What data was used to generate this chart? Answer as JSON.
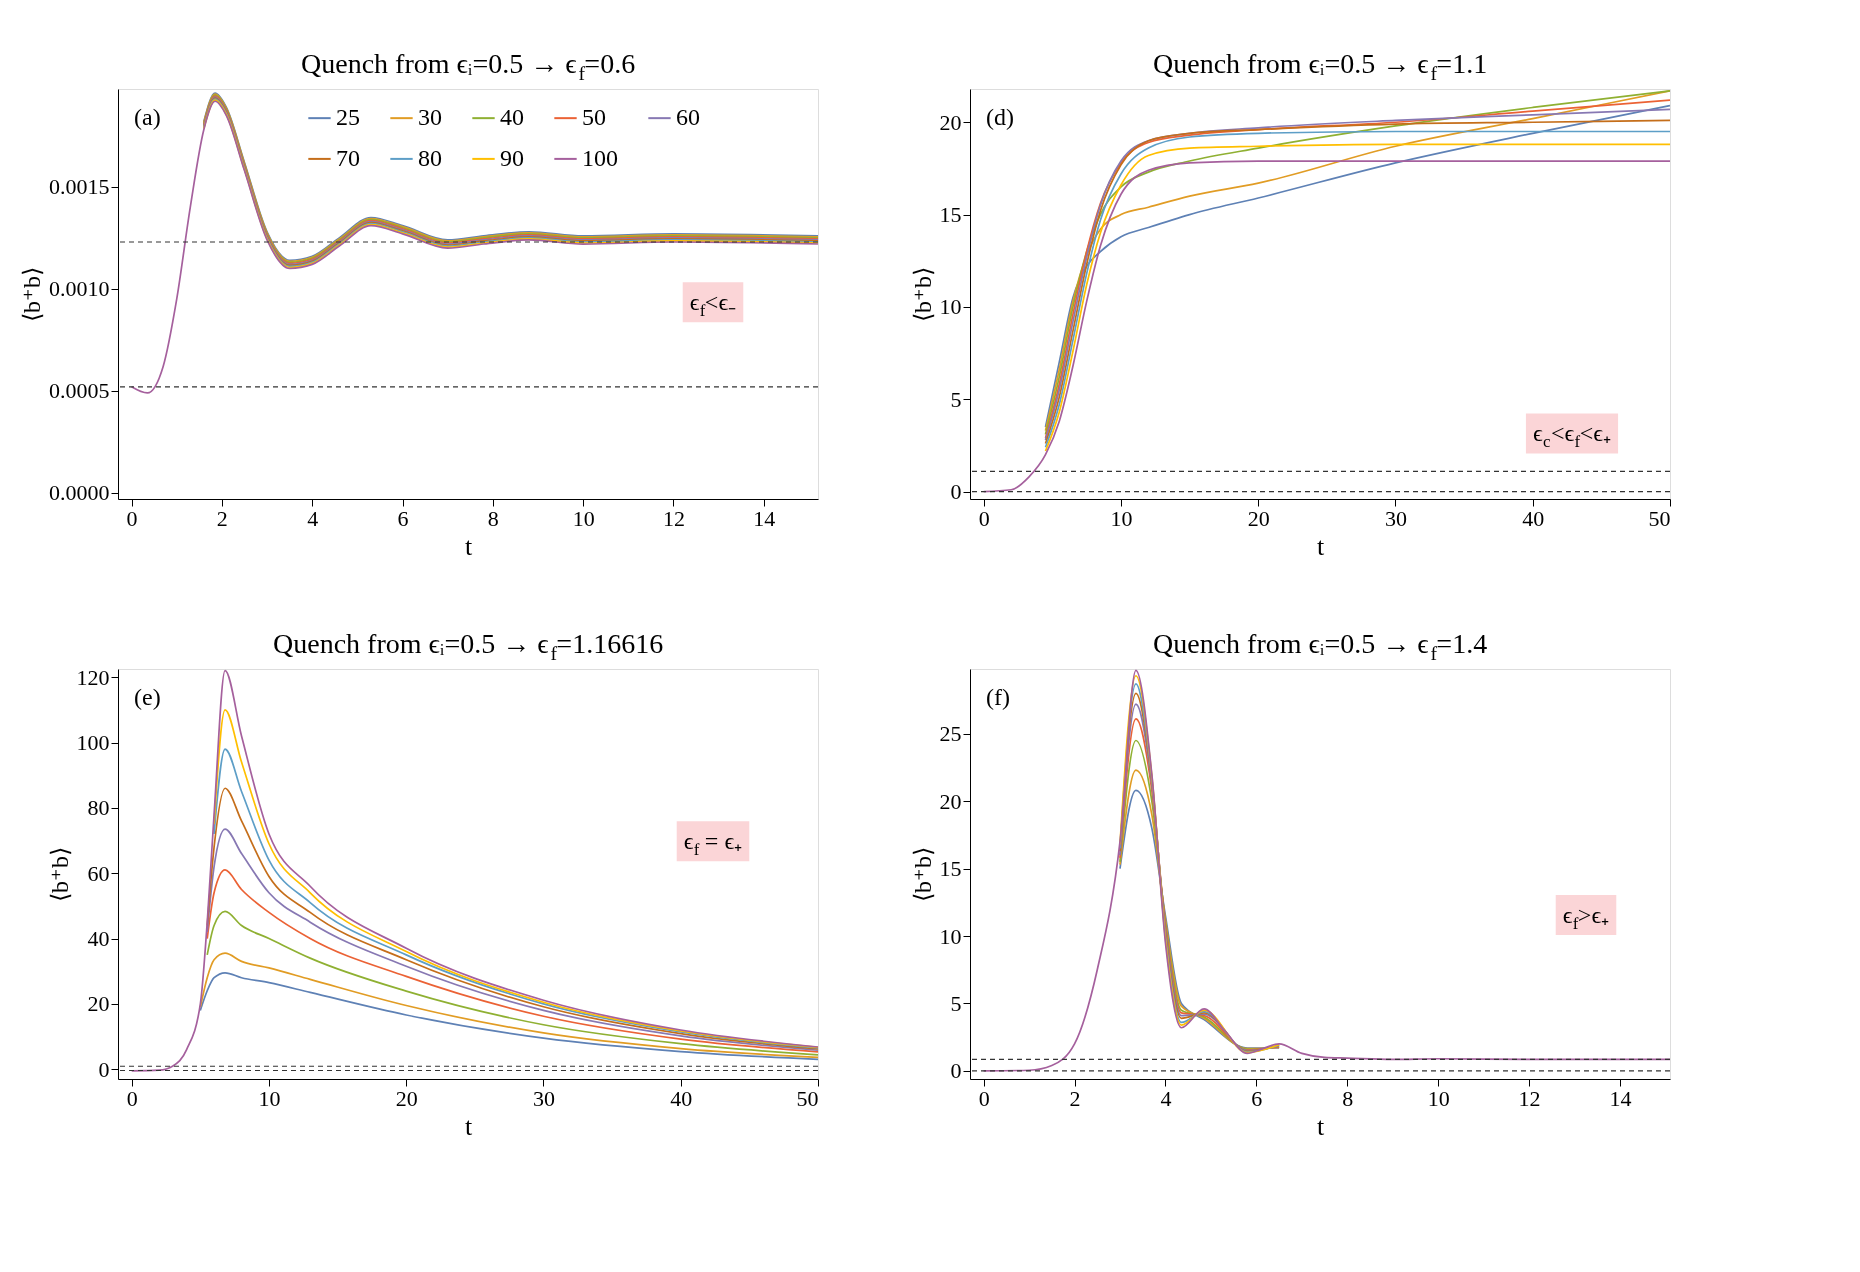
{
  "chart_data": [
    {
      "type": "line",
      "title": "Quench from ϵᵢ=0.5 → ϵ$_{f}$=0.6",
      "xlabel": "t",
      "ylabel": "⟨b⁺b⟩",
      "legend": "top right",
      "xlim": [
        -0.3,
        15.2
      ],
      "ylim": [
        -3e-05,
        0.00198
      ],
      "xticks": [
        0,
        2,
        4,
        6,
        8,
        10,
        12,
        14
      ],
      "yticks": [
        {
          "value": 0,
          "label": "0.0000"
        },
        {
          "value": 0.0005,
          "label": "0.0005"
        },
        {
          "value": 0.001,
          "label": "0.0010"
        },
        {
          "value": 0.0015,
          "label": "0.0015"
        }
      ],
      "x": [
        0,
        0.35,
        0.7,
        1.0,
        1.3,
        1.6,
        1.85,
        2.1,
        2.5,
        3.0,
        3.5,
        4.0,
        4.6,
        5.3,
        6.0,
        7.0,
        7.8,
        8.8,
        10,
        12,
        15.2
      ],
      "series": [
        {
          "name": "25",
          "color": "#5e81b5",
          "values": [
            null,
            null,
            null,
            null,
            null,
            0.00182,
            0.00196,
            0.00189,
            0.00162,
            0.00128,
            0.00114,
            0.00116,
            0.00125,
            0.00135,
            0.00131,
            0.00124,
            0.00126,
            0.00128,
            0.00126,
            0.00127,
            0.00126
          ]
        },
        {
          "name": "30",
          "color": "#e19c24",
          "values": [
            null,
            null,
            null,
            null,
            null,
            0.001815,
            0.001955,
            0.001885,
            0.001615,
            0.001275,
            0.001135,
            0.001155,
            0.001245,
            0.001345,
            0.001305,
            0.001235,
            0.001255,
            0.001275,
            0.001255,
            0.001265,
            0.001255
          ]
        },
        {
          "name": "40",
          "color": "#8fb032",
          "values": [
            null,
            null,
            null,
            null,
            null,
            0.00181,
            0.00195,
            0.00188,
            0.00161,
            0.00127,
            0.00113,
            0.00115,
            0.00124,
            0.00134,
            0.0013,
            0.00123,
            0.00125,
            0.00127,
            0.00125,
            0.00126,
            0.00125
          ]
        },
        {
          "name": "50",
          "color": "#eb6235",
          "values": [
            null,
            null,
            null,
            null,
            null,
            0.001805,
            0.001945,
            0.001875,
            0.001605,
            0.001265,
            0.001125,
            0.001145,
            0.001235,
            0.001335,
            0.001295,
            0.001225,
            0.001245,
            0.001265,
            0.001245,
            0.001255,
            0.001245
          ]
        },
        {
          "name": "60",
          "color": "#8778b3",
          "values": [
            null,
            null,
            null,
            null,
            null,
            0.0018,
            0.00194,
            0.00187,
            0.0016,
            0.00126,
            0.00112,
            0.00114,
            0.00123,
            0.00133,
            0.00129,
            0.00122,
            0.00124,
            0.00126,
            0.00124,
            0.00125,
            0.00124
          ]
        },
        {
          "name": "70",
          "color": "#c56e1a",
          "values": [
            null,
            null,
            null,
            null,
            null,
            0.001795,
            0.001935,
            0.001865,
            0.001595,
            0.001255,
            0.001115,
            0.001135,
            0.001225,
            0.001325,
            0.001285,
            0.001215,
            0.001235,
            0.001255,
            0.001235,
            0.001245,
            0.001235
          ]
        },
        {
          "name": "80",
          "color": "#5d9ec7",
          "values": [
            null,
            null,
            null,
            null,
            null,
            0.00179,
            0.00193,
            0.00186,
            0.00159,
            0.00125,
            0.00111,
            0.00113,
            0.00122,
            0.00132,
            0.00128,
            0.00121,
            0.00123,
            0.00125,
            0.00123,
            0.00124,
            0.00123
          ]
        },
        {
          "name": "90",
          "color": "#ffbf00",
          "values": [
            null,
            null,
            null,
            null,
            null,
            0.001785,
            0.001925,
            0.001855,
            0.001585,
            0.001245,
            0.001105,
            0.001125,
            0.001215,
            0.001315,
            0.001275,
            0.001205,
            0.001225,
            0.001245,
            0.001225,
            0.001235,
            0.001225
          ]
        },
        {
          "name": "100",
          "color": "#a5609d",
          "values": [
            0.00052,
            0.00049,
            0.00062,
            0.00095,
            0.0014,
            0.00178,
            0.00192,
            0.00185,
            0.00158,
            0.00124,
            0.0011,
            0.00112,
            0.00121,
            0.00131,
            0.00127,
            0.0012,
            0.00122,
            0.00124,
            0.00122,
            0.00123,
            0.00122
          ]
        }
      ],
      "ref_lines": [
        {
          "axis": "y",
          "value": 0.00123,
          "line_style": "dashed",
          "color": "#333333"
        },
        {
          "axis": "y",
          "value": 0.00052,
          "line_style": "dashed",
          "color": "#333333"
        }
      ],
      "annotations": [
        "(a)",
        "ϵ$_{f}$<ϵ₋"
      ]
    },
    {
      "type": "line",
      "title": "Quench from ϵᵢ=0.5 → ϵ$_{f}$=1.1",
      "xlabel": "t",
      "ylabel": "⟨b⁺b⟩",
      "xlim": [
        -1,
        50
      ],
      "ylim": [
        -0.4,
        21.8
      ],
      "xticks": [
        0,
        10,
        20,
        30,
        40,
        50
      ],
      "yticks": [
        0,
        5,
        10,
        15,
        20
      ],
      "x": [
        0,
        2,
        3.3,
        4.5,
        5.5,
        6.5,
        7.5,
        8.5,
        10,
        12,
        15,
        20,
        30,
        40,
        50
      ],
      "series": [
        {
          "color": "#5e81b5",
          "values": [
            null,
            null,
            null,
            3.5,
            7.0,
            10.5,
            12.2,
            13.0,
            13.8,
            14.3,
            15.0,
            15.9,
            17.8,
            19.4,
            20.9
          ]
        },
        {
          "color": "#e19c24",
          "values": [
            null,
            null,
            null,
            3.3,
            6.6,
            10.3,
            12.8,
            14.2,
            15.0,
            15.4,
            16.0,
            16.7,
            18.7,
            20.2,
            21.7
          ]
        },
        {
          "color": "#8fb032",
          "values": [
            null,
            null,
            null,
            3.1,
            6.2,
            10.0,
            13.0,
            15.0,
            16.5,
            17.3,
            17.9,
            18.6,
            19.8,
            20.8,
            21.7
          ]
        },
        {
          "color": "#eb6235",
          "values": [
            null,
            null,
            null,
            2.9,
            5.8,
            9.6,
            13.0,
            15.6,
            17.8,
            18.9,
            19.3,
            19.6,
            20.0,
            20.6,
            21.2
          ]
        },
        {
          "color": "#8778b3",
          "values": [
            null,
            null,
            null,
            2.8,
            5.5,
            9.2,
            12.7,
            15.5,
            17.9,
            19.0,
            19.4,
            19.7,
            20.1,
            20.4,
            20.7
          ]
        },
        {
          "color": "#c56e1a",
          "values": [
            null,
            null,
            null,
            2.6,
            5.1,
            8.7,
            12.3,
            15.2,
            17.7,
            19.0,
            19.4,
            19.6,
            19.9,
            20.0,
            20.1
          ]
        },
        {
          "color": "#5d9ec7",
          "values": [
            null,
            null,
            null,
            2.4,
            4.7,
            8.2,
            11.8,
            14.7,
            17.2,
            18.6,
            19.2,
            19.4,
            19.5,
            19.5,
            19.5
          ]
        },
        {
          "color": "#ffbf00",
          "values": [
            null,
            null,
            null,
            2.2,
            4.3,
            7.6,
            11.2,
            14.0,
            16.6,
            18.2,
            18.6,
            18.7,
            18.8,
            18.8,
            18.8
          ]
        },
        {
          "color": "#a5609d",
          "values": [
            0,
            0.1,
            0.8,
            2.0,
            3.8,
            6.8,
            10.3,
            13.3,
            16.1,
            17.4,
            17.8,
            17.9,
            17.9,
            17.9,
            17.9
          ]
        }
      ],
      "ref_lines": [
        {
          "axis": "y",
          "value": 1.1,
          "line_style": "dashed",
          "color": "#333333"
        },
        {
          "axis": "y",
          "value": 0,
          "line_style": "dashed",
          "color": "#333333"
        }
      ],
      "annotations": [
        "(d)",
        "ϵ$_{c}$<ϵ$_{f}$<ϵ₊"
      ]
    },
    {
      "type": "line",
      "title": "Quench from ϵᵢ=0.5 → ϵ$_{f}$=1.16616",
      "xlabel": "t",
      "ylabel": "⟨b⁺b⟩",
      "xlim": [
        -1,
        50
      ],
      "ylim": [
        -3,
        122.5
      ],
      "xticks": [
        0,
        10,
        20,
        30,
        40,
        50
      ],
      "yticks": [
        0,
        20,
        40,
        60,
        80,
        100,
        120
      ],
      "x": [
        0,
        2,
        3,
        4,
        5,
        5.5,
        6,
        6.8,
        8,
        10,
        13,
        20,
        30,
        40,
        50
      ],
      "series": [
        {
          "color": "#5e81b5",
          "values": [
            null,
            null,
            null,
            null,
            18,
            24,
            28,
            29.5,
            28,
            26.5,
            23.5,
            16.6,
            9.5,
            5.4,
            3.0
          ]
        },
        {
          "color": "#e19c24",
          "values": [
            null,
            null,
            null,
            null,
            19,
            28,
            33.5,
            35.5,
            33,
            31,
            27.5,
            19.5,
            11.1,
            6.3,
            3.6
          ]
        },
        {
          "color": "#8fb032",
          "values": [
            null,
            null,
            null,
            null,
            null,
            35,
            44,
            48.3,
            44,
            40,
            34,
            23.9,
            13.6,
            7.8,
            4.4
          ]
        },
        {
          "color": "#eb6235",
          "values": [
            null,
            null,
            null,
            null,
            null,
            40,
            54,
            61,
            55,
            48,
            40,
            28.4,
            16.2,
            9.2,
            5.3
          ]
        },
        {
          "color": "#8778b3",
          "values": [
            null,
            null,
            null,
            null,
            null,
            42,
            62,
            73.5,
            66,
            54,
            45,
            31.5,
            18.0,
            10.2,
            5.8
          ]
        },
        {
          "color": "#c56e1a",
          "values": [
            null,
            null,
            null,
            null,
            null,
            44,
            68,
            86,
            76,
            59,
            48,
            33.5,
            19.1,
            10.9,
            6.2
          ]
        },
        {
          "color": "#5d9ec7",
          "values": [
            null,
            null,
            null,
            null,
            null,
            null,
            72,
            98,
            85,
            64,
            51,
            35,
            20.0,
            11.4,
            6.5
          ]
        },
        {
          "color": "#ffbf00",
          "values": [
            null,
            null,
            null,
            null,
            null,
            null,
            75,
            110,
            94,
            69,
            54,
            36,
            20.5,
            11.7,
            6.7
          ]
        },
        {
          "color": "#a5609d",
          "values": [
            -0.5,
            -0.3,
            1.0,
            6,
            20,
            45,
            78,
            122,
            102,
            72,
            56,
            37,
            21.1,
            12.0,
            6.8
          ]
        }
      ],
      "ref_lines": [
        {
          "axis": "y",
          "value": 0.9,
          "line_style": "dashed",
          "color": "#333333"
        },
        {
          "axis": "y",
          "value": -0.4,
          "line_style": "dashed",
          "color": "#333333"
        }
      ],
      "annotations": [
        "(e)",
        "ϵ$_{f}$ = ϵ₊"
      ]
    },
    {
      "type": "line",
      "title": "Quench from ϵᵢ=0.5 → ϵ$_{f}$=1.4",
      "xlabel": "t",
      "ylabel": "⟨b⁺b⟩",
      "xlim": [
        -0.3,
        15.1
      ],
      "ylim": [
        -0.6,
        29.8
      ],
      "xticks": [
        0,
        2,
        4,
        6,
        8,
        10,
        12,
        14
      ],
      "yticks": [
        0,
        5,
        10,
        15,
        20,
        25
      ],
      "x": [
        0,
        1,
        1.5,
        2,
        2.5,
        3,
        3.35,
        3.7,
        4,
        4.35,
        4.85,
        5.3,
        5.8,
        6.1,
        6.5,
        7,
        7.5,
        8,
        9,
        10,
        12,
        15.1
      ],
      "series": [
        {
          "color": "#5e81b5",
          "values": [
            null,
            null,
            null,
            null,
            null,
            15.0,
            20.8,
            18,
            11.5,
            5.0,
            3.8,
            null,
            1.7,
            null,
            1.7,
            null,
            null,
            null,
            null,
            null,
            null,
            null
          ]
        },
        {
          "color": "#e19c24",
          "values": [
            null,
            null,
            null,
            null,
            null,
            15.3,
            22.3,
            19,
            11.2,
            4.8,
            3.9,
            null,
            1.65,
            null,
            1.75,
            null,
            null,
            null,
            null,
            null,
            null,
            null
          ]
        },
        {
          "color": "#8fb032",
          "values": [
            null,
            null,
            null,
            null,
            null,
            15.5,
            24.5,
            20,
            11.0,
            4.5,
            4.0,
            null,
            1.6,
            null,
            1.8,
            null,
            null,
            null,
            null,
            null,
            null,
            null
          ]
        },
        {
          "color": "#eb6235",
          "values": [
            null,
            null,
            null,
            null,
            null,
            15.8,
            26.1,
            20.8,
            10.8,
            4.3,
            4.1,
            null,
            1.55,
            null,
            1.8,
            null,
            null,
            null,
            null,
            null,
            null,
            null
          ]
        },
        {
          "color": "#8778b3",
          "values": [
            null,
            null,
            null,
            null,
            null,
            16.0,
            27.2,
            21.2,
            10.5,
            4.1,
            4.2,
            null,
            1.5,
            null,
            1.85,
            null,
            null,
            null,
            null,
            null,
            null,
            null
          ]
        },
        {
          "color": "#c56e1a",
          "values": [
            null,
            null,
            null,
            null,
            null,
            16.3,
            28.0,
            21.5,
            10.2,
            3.9,
            4.3,
            null,
            1.45,
            null,
            1.9,
            null,
            null,
            null,
            null,
            null,
            null,
            null
          ]
        },
        {
          "color": "#5d9ec7",
          "values": [
            null,
            null,
            null,
            null,
            null,
            16.5,
            28.7,
            21.7,
            10.0,
            3.6,
            4.4,
            null,
            1.4,
            null,
            1.9,
            null,
            null,
            null,
            null,
            null,
            null,
            null
          ]
        },
        {
          "color": "#ffbf00",
          "values": [
            null,
            null,
            null,
            null,
            null,
            16.8,
            29.3,
            21.9,
            9.8,
            3.4,
            4.5,
            null,
            1.35,
            null,
            1.95,
            null,
            null,
            null,
            null,
            null,
            null,
            null
          ]
        },
        {
          "color": "#a5609d",
          "values": [
            0,
            0.05,
            0.4,
            2.0,
            7.5,
            17.0,
            29.7,
            22.0,
            9.5,
            3.2,
            4.6,
            3.0,
            1.3,
            1.6,
            2.0,
            1.3,
            1.0,
            0.95,
            0.85,
            0.9,
            0.85,
            0.85
          ]
        }
      ],
      "ref_lines": [
        {
          "axis": "y",
          "value": 0.85,
          "line_style": "dashed",
          "color": "#333333"
        },
        {
          "axis": "y",
          "value": 0,
          "line_style": "dashed",
          "color": "#333333"
        }
      ],
      "annotations": [
        "(f)",
        "ϵ$_{f}$>ϵ₊"
      ]
    }
  ]
}
